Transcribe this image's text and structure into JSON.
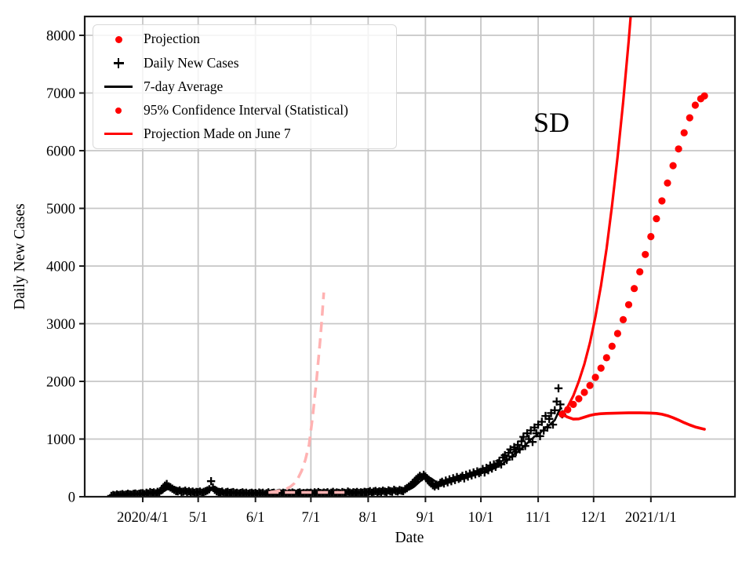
{
  "chart_data": {
    "type": "line+scatter",
    "title": "",
    "xlabel": "Date",
    "ylabel": "Daily New Cases",
    "annotation": {
      "text": "SD"
    },
    "start_date": "2020/3/15",
    "ylim": [
      0,
      8327
    ],
    "xlim_days": [
      -14.4,
      337.5
    ],
    "grid": true,
    "y_ticks": [
      0,
      1000,
      2000,
      3000,
      4000,
      5000,
      6000,
      7000,
      8000
    ],
    "x_ticks": [
      {
        "label": "2020/4/1",
        "day": 17
      },
      {
        "label": "5/1",
        "day": 47
      },
      {
        "label": "6/1",
        "day": 78
      },
      {
        "label": "7/1",
        "day": 108
      },
      {
        "label": "8/1",
        "day": 139
      },
      {
        "label": "9/1",
        "day": 170
      },
      {
        "label": "10/1",
        "day": 200
      },
      {
        "label": "11/1",
        "day": 231
      },
      {
        "label": "12/1",
        "day": 261
      },
      {
        "label": "2021/1/1",
        "day": 292
      }
    ],
    "legend": [
      {
        "marker": "red-dot",
        "label": "Projection"
      },
      {
        "marker": "black-plus",
        "label": "Daily New Cases"
      },
      {
        "marker": "black-line",
        "label": "7-day Average"
      },
      {
        "marker": "red-dot",
        "label": "95% Confidence Interval (Statistical)"
      },
      {
        "marker": "red-line",
        "label": "Projection Made on June 7"
      }
    ],
    "colors": {
      "projection": "#ff0000",
      "confidence_interval": "#ff0000",
      "june7_projection_faded": "#ffb2b2",
      "daily_cases": "#000000",
      "avg7": "#000000",
      "grid": "#c6c6c6",
      "spine": "#1a1a1a"
    },
    "series": {
      "daily_cases": {
        "start_day": 0,
        "values": [
          15,
          30,
          22,
          40,
          28,
          35,
          45,
          30,
          38,
          52,
          40,
          35,
          48,
          55,
          42,
          50,
          58,
          60,
          45,
          70,
          55,
          80,
          65,
          75,
          58,
          85,
          70,
          110,
          150,
          190,
          220,
          180,
          160,
          140,
          120,
          100,
          95,
          110,
          85,
          90,
          105,
          80,
          95,
          75,
          88,
          70,
          82,
          78,
          90,
          70,
          85,
          95,
          110,
          130,
          270,
          160,
          120,
          95,
          80,
          70,
          88,
          60,
          75,
          85,
          65,
          72,
          80,
          60,
          70,
          55,
          65,
          75,
          58,
          68,
          50,
          62,
          70,
          55,
          65,
          50,
          72,
          58,
          68,
          45,
          60,
          75,
          52,
          64,
          70,
          48,
          58,
          66,
          55,
          70,
          62,
          50,
          68,
          58,
          72,
          60,
          52,
          66,
          74,
          56,
          64,
          58,
          70,
          62,
          68,
          55,
          75,
          60,
          80,
          65,
          58,
          72,
          62,
          78,
          55,
          70,
          85,
          60,
          74,
          66,
          58,
          80,
          70,
          62,
          88,
          72,
          60,
          78,
          68,
          82,
          64,
          76,
          70,
          85,
          75,
          80,
          95,
          70,
          88,
          100,
          78,
          92,
          85,
          105,
          90,
          80,
          110,
          95,
          88,
          120,
          100,
          92,
          115,
          105,
          98,
          130,
          150,
          175,
          200,
          230,
          260,
          300,
          330,
          360,
          340,
          380,
          350,
          310,
          270,
          230,
          200,
          180,
          210,
          190,
          240,
          260,
          230,
          280,
          250,
          300,
          270,
          320,
          290,
          340,
          310,
          330,
          360,
          320,
          380,
          350,
          400,
          370,
          420,
          390,
          440,
          410,
          430,
          480,
          420,
          500,
          460,
          540,
          490,
          560,
          520,
          580,
          620,
          560,
          680,
          720,
          640,
          760,
          820,
          700,
          860,
          780,
          900,
          820,
          960,
          1040,
          880,
          1100,
          1000,
          1150,
          950,
          1200,
          1100,
          1250,
          1050,
          1300,
          1150,
          1400,
          1200,
          1350,
          1450,
          1250,
          1500,
          1650,
          1880,
          1600,
          1430
        ]
      },
      "projection": {
        "days": [
          244,
          247,
          250,
          253,
          256,
          259,
          262,
          265,
          268,
          271,
          274,
          277,
          280,
          283,
          286,
          289,
          292,
          295,
          298,
          301,
          304,
          307,
          310,
          313,
          316,
          319,
          321
        ],
        "values": [
          1430,
          1510,
          1600,
          1700,
          1810,
          1930,
          2070,
          2230,
          2410,
          2610,
          2830,
          3070,
          3330,
          3610,
          3900,
          4200,
          4510,
          4820,
          5130,
          5440,
          5740,
          6030,
          6310,
          6570,
          6790,
          6900,
          6950
        ]
      },
      "ci_upper": {
        "days": [
          244,
          247,
          250,
          253,
          256,
          259,
          262,
          265,
          268,
          271,
          274,
          277,
          280,
          283
        ],
        "values": [
          1430,
          1560,
          1750,
          2000,
          2300,
          2670,
          3120,
          3660,
          4300,
          5050,
          5900,
          6850,
          7900,
          9100
        ]
      },
      "ci_lower": {
        "days": [
          244,
          247,
          250,
          253,
          256,
          259,
          262,
          265,
          268,
          274,
          280,
          286,
          292,
          295,
          298,
          301,
          304,
          307,
          310,
          313,
          316,
          319,
          321
        ],
        "values": [
          1430,
          1380,
          1345,
          1350,
          1380,
          1410,
          1430,
          1440,
          1445,
          1450,
          1455,
          1455,
          1450,
          1445,
          1430,
          1405,
          1370,
          1330,
          1285,
          1245,
          1210,
          1185,
          1170
        ]
      },
      "june7_upper_dashed": {
        "days": [
          86,
          89,
          92,
          95,
          97,
          99,
          101,
          103,
          105,
          107,
          109,
          111,
          113,
          114,
          115
        ],
        "values": [
          80,
          92,
          110,
          140,
          175,
          230,
          320,
          450,
          640,
          900,
          1400,
          2000,
          2700,
          3100,
          3540
        ]
      },
      "june7_lower_dashed": {
        "days": [
          85,
          127
        ],
        "values": [
          75,
          75
        ]
      }
    }
  }
}
